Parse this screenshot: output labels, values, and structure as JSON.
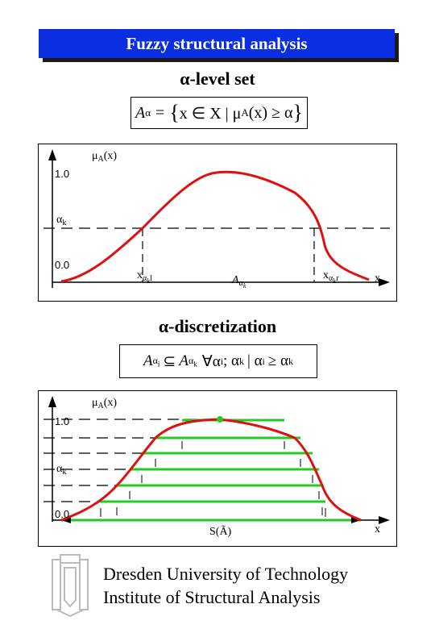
{
  "banner": {
    "title": "Fuzzy structural analysis"
  },
  "section1": {
    "heading": "α-level set",
    "formula": {
      "lhs": "A",
      "sub": "α",
      "eq": "=",
      "set_open": "{",
      "body": "x ∈ X | μ",
      "mu_sub": "A",
      "tail": "(x) ≥ α",
      "set_close": "}"
    },
    "plot": {
      "y_label": "μ",
      "y_label_sub": "A",
      "y_label_tail": "(x)",
      "tick_top": "1.0",
      "tick_bottom": "0.0",
      "alpha_label": "α",
      "alpha_sub": "k",
      "x_label": "x",
      "left_point": "x",
      "left_point_sub": "α",
      "left_point_subsub": "k",
      "left_point_sub2": "l",
      "right_point": "x",
      "right_point_sub": "α",
      "right_point_subsub": "k",
      "right_point_sub2": "r",
      "set_label": "A",
      "set_label_sub": "α",
      "set_label_subsub": "k"
    }
  },
  "section2": {
    "heading": "α-discretization",
    "formula": {
      "lhs": "A",
      "lhs_sub": "α",
      "lhs_subsub": "i",
      "subset": "⊆",
      "rhs": "A",
      "rhs_sub": "α",
      "rhs_subsub": "k",
      "forall": "∀α",
      "forall_sub": "i",
      "sep": "; α",
      "k": "k",
      "bar": "| α",
      "i": "i",
      "ge": "≥ α",
      "k2": "k"
    },
    "plot": {
      "y_label": "μ",
      "y_label_sub": "A",
      "y_label_tail": "(x)",
      "tick_top": "1.0",
      "tick_bottom": "0.0",
      "alpha_label": "α",
      "alpha_sub": "k",
      "x_label": "x",
      "support_label": "S(Ã)"
    }
  },
  "colors": {
    "banner": "#0a2ee0",
    "curve": "#e01010",
    "levels": "#22cc22"
  },
  "footer": {
    "line1": "Dresden University of Technology",
    "line2": "Institute of Structural Analysis"
  }
}
